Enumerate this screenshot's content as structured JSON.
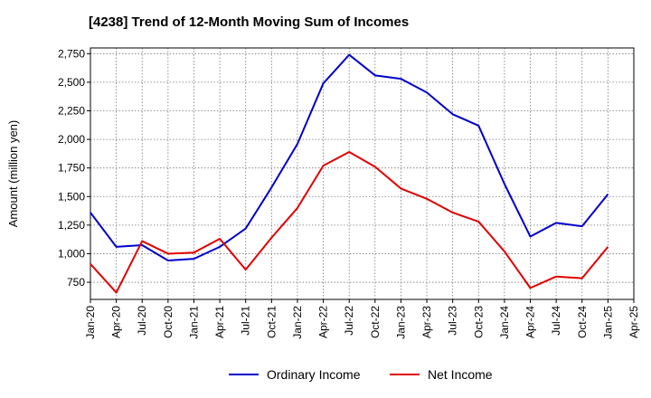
{
  "chart_data": {
    "type": "line",
    "title": "[4238]  Trend of 12-Month Moving Sum of Incomes",
    "xlabel": "",
    "ylabel": "Amount (million yen)",
    "ylim": [
      600,
      2800
    ],
    "yticks": [
      750,
      1000,
      1250,
      1500,
      1750,
      2000,
      2250,
      2500,
      2750
    ],
    "ytick_labels": [
      "750",
      "1,000",
      "1,250",
      "1,500",
      "1,750",
      "2,000",
      "2,250",
      "2,500",
      "2,750"
    ],
    "categories": [
      "Jan-20",
      "Apr-20",
      "Jul-20",
      "Oct-20",
      "Jan-21",
      "Apr-21",
      "Jul-21",
      "Oct-21",
      "Jan-22",
      "Apr-22",
      "Jul-22",
      "Oct-22",
      "Jan-23",
      "Apr-23",
      "Jul-23",
      "Oct-23",
      "Jan-24",
      "Apr-24",
      "Jul-24",
      "Oct-24",
      "Jan-25",
      "Apr-25"
    ],
    "grid": true,
    "legend_position": "bottom-center",
    "series": [
      {
        "name": "Ordinary Income",
        "color": "#0000cc",
        "values": [
          1360,
          1060,
          1075,
          940,
          955,
          1060,
          1220,
          1580,
          1960,
          2490,
          2740,
          2560,
          2530,
          2410,
          2220,
          2120,
          1610,
          1150,
          1270,
          1240,
          1520,
          null
        ]
      },
      {
        "name": "Net Income",
        "color": "#e00000",
        "values": [
          910,
          660,
          1110,
          1000,
          1010,
          1130,
          860,
          1140,
          1400,
          1770,
          1890,
          1760,
          1570,
          1480,
          1360,
          1280,
          1020,
          700,
          800,
          785,
          1060,
          null
        ]
      }
    ]
  }
}
